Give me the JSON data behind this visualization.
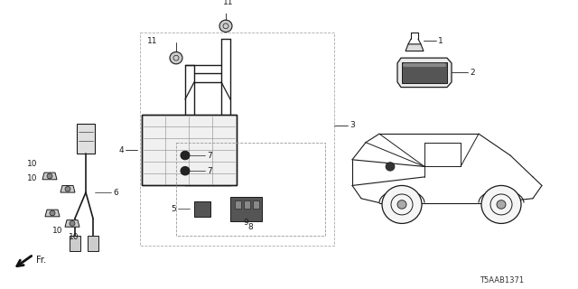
{
  "background_color": "#ffffff",
  "line_color": "#1a1a1a",
  "diagram_code": "T5AAB1371",
  "fig_width": 6.4,
  "fig_height": 3.2,
  "dpi": 100
}
